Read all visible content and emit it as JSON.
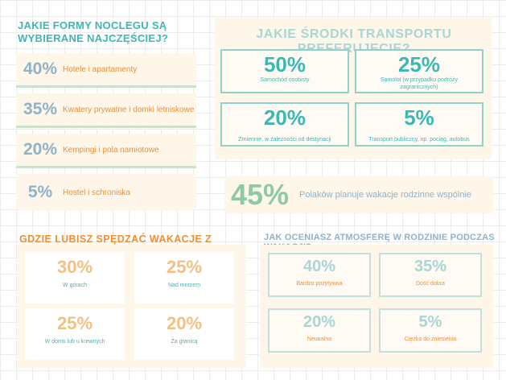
{
  "accommodation": {
    "title": "JAKIE FORMY NOCLEGU SĄ WYBIERANE NAJCZĘŚCIEJ?",
    "items": [
      {
        "pct": "40%",
        "label": "Hotele i apartamenty"
      },
      {
        "pct": "35%",
        "label": "Kwatery prywatne i domki letniskowe"
      },
      {
        "pct": "20%",
        "label": "Kempingi i pola namiotowe"
      },
      {
        "pct": "5%",
        "label": "Hostel i schroniska"
      }
    ]
  },
  "transport": {
    "title": "JAKIE ŚRODKI TRANSPORTU PREFERUJECIE?",
    "items": [
      {
        "pct": "50%",
        "label": "Samochód osobisty"
      },
      {
        "pct": "25%",
        "label": "Samolot (w przypadku podróży zagranicznych)"
      },
      {
        "pct": "20%",
        "label": "Zmiennie, w zależności od destynacji"
      },
      {
        "pct": "5%",
        "label": "Transport publiczny, np. pociąg, autobus"
      }
    ]
  },
  "family": {
    "pct": "45%",
    "text": "Polaków planuje wakacje rodzinne wspólnie"
  },
  "where": {
    "title": "GDZIE LUBISZ SPĘDZAĆ WAKACJE Z RODZINĄ?",
    "items": [
      {
        "pct": "30%",
        "label": "W górach"
      },
      {
        "pct": "25%",
        "label": "Nad morzem"
      },
      {
        "pct": "25%",
        "label": "W domu lub u krewnych"
      },
      {
        "pct": "20%",
        "label": "Za granicą"
      }
    ]
  },
  "atmosphere": {
    "title": "JAK OCENIASZ ATMOSFERĘ W RODZINIE PODCZAS WAKACJI?",
    "items": [
      {
        "pct": "40%",
        "label": "Bardzo pozytywna"
      },
      {
        "pct": "35%",
        "label": "Dość dobra"
      },
      {
        "pct": "20%",
        "label": "Neutralna"
      },
      {
        "pct": "5%",
        "label": "Ciężka do zniesienia"
      }
    ]
  }
}
